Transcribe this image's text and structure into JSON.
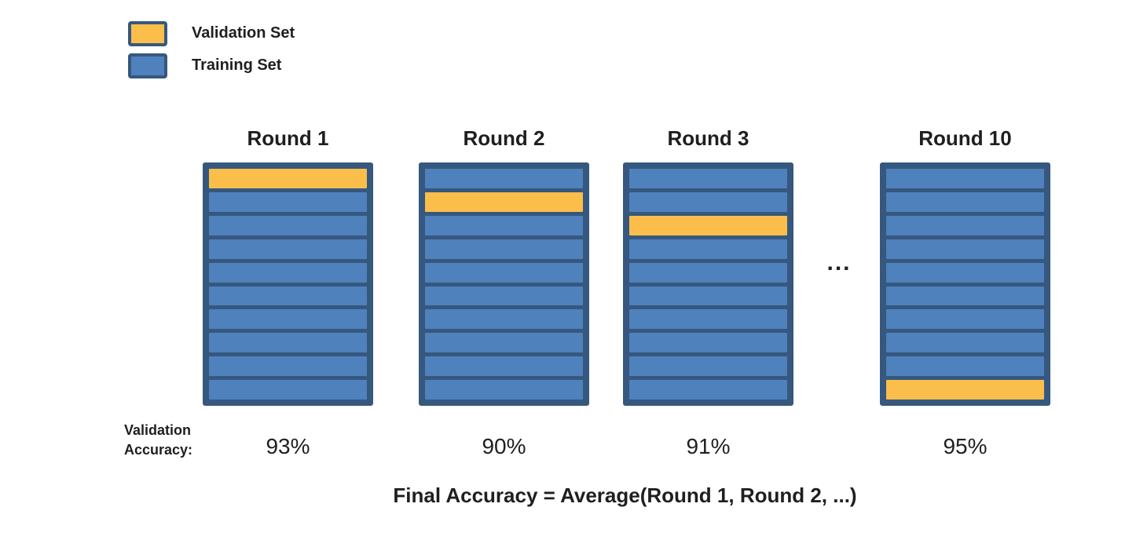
{
  "colors": {
    "validation": "#FBBE4B",
    "training": "#4F81BD",
    "border": "#36587E",
    "text": "#1F1F1F"
  },
  "legend": {
    "items": [
      {
        "label": "Validation Set",
        "color": "#FBBE4B"
      },
      {
        "label": "Training Set",
        "color": "#4F81BD"
      }
    ]
  },
  "rounds": [
    {
      "title": "Round 1",
      "num_folds": 10,
      "validation_fold": 1,
      "accuracy": "93%"
    },
    {
      "title": "Round 2",
      "num_folds": 10,
      "validation_fold": 2,
      "accuracy": "90%"
    },
    {
      "title": "Round 3",
      "num_folds": 10,
      "validation_fold": 3,
      "accuracy": "91%"
    },
    {
      "title": "Round 10",
      "num_folds": 10,
      "validation_fold": 10,
      "accuracy": "95%"
    }
  ],
  "ellipsis": "...",
  "accuracy_caption": {
    "line1": "Validation",
    "line2": "Accuracy:"
  },
  "final_formula": "Final Accuracy = Average(Round 1, Round 2, ...)"
}
